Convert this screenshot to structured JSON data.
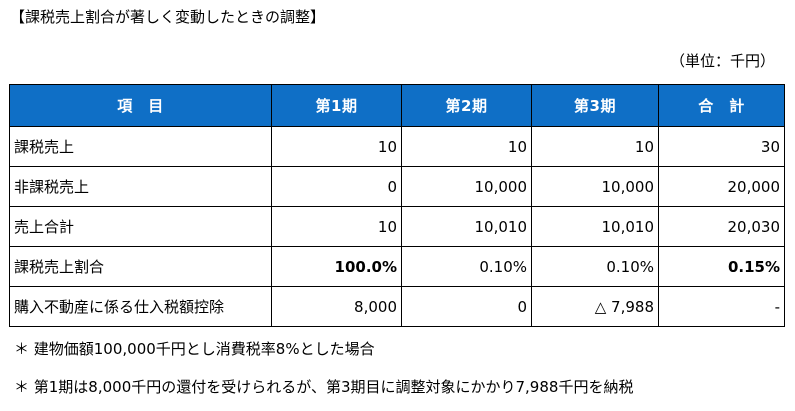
{
  "title": "【課税売上割合が著しく変動したときの調整】",
  "unit": "（単位：千円）",
  "table": {
    "headers": [
      "項　目",
      "第1期",
      "第2期",
      "第3期",
      "合　計"
    ],
    "rows": [
      {
        "item": "課税売上",
        "values": [
          "10",
          "10",
          "10",
          "30"
        ]
      },
      {
        "item": "非課税売上",
        "values": [
          "0",
          "10,000",
          "10,000",
          "20,000"
        ]
      },
      {
        "item": "売上合計",
        "values": [
          "10",
          "10,010",
          "10,010",
          "20,030"
        ]
      },
      {
        "item": "課税売上割合",
        "values": [
          "100.0%",
          "0.10%",
          "0.10%",
          "0.15%"
        ]
      },
      {
        "item": "購入不動産に係る仕入税額控除",
        "values": [
          "8,000",
          "0",
          "△ 7,988",
          "-"
        ]
      }
    ]
  },
  "notes": [
    "＊ 建物価額100,000千円とし消費税率8%とした場合",
    "＊ 第1期は8,000千円の還付を受けられるが、第3期目に調整対象にかかり7,988千円を納税"
  ]
}
